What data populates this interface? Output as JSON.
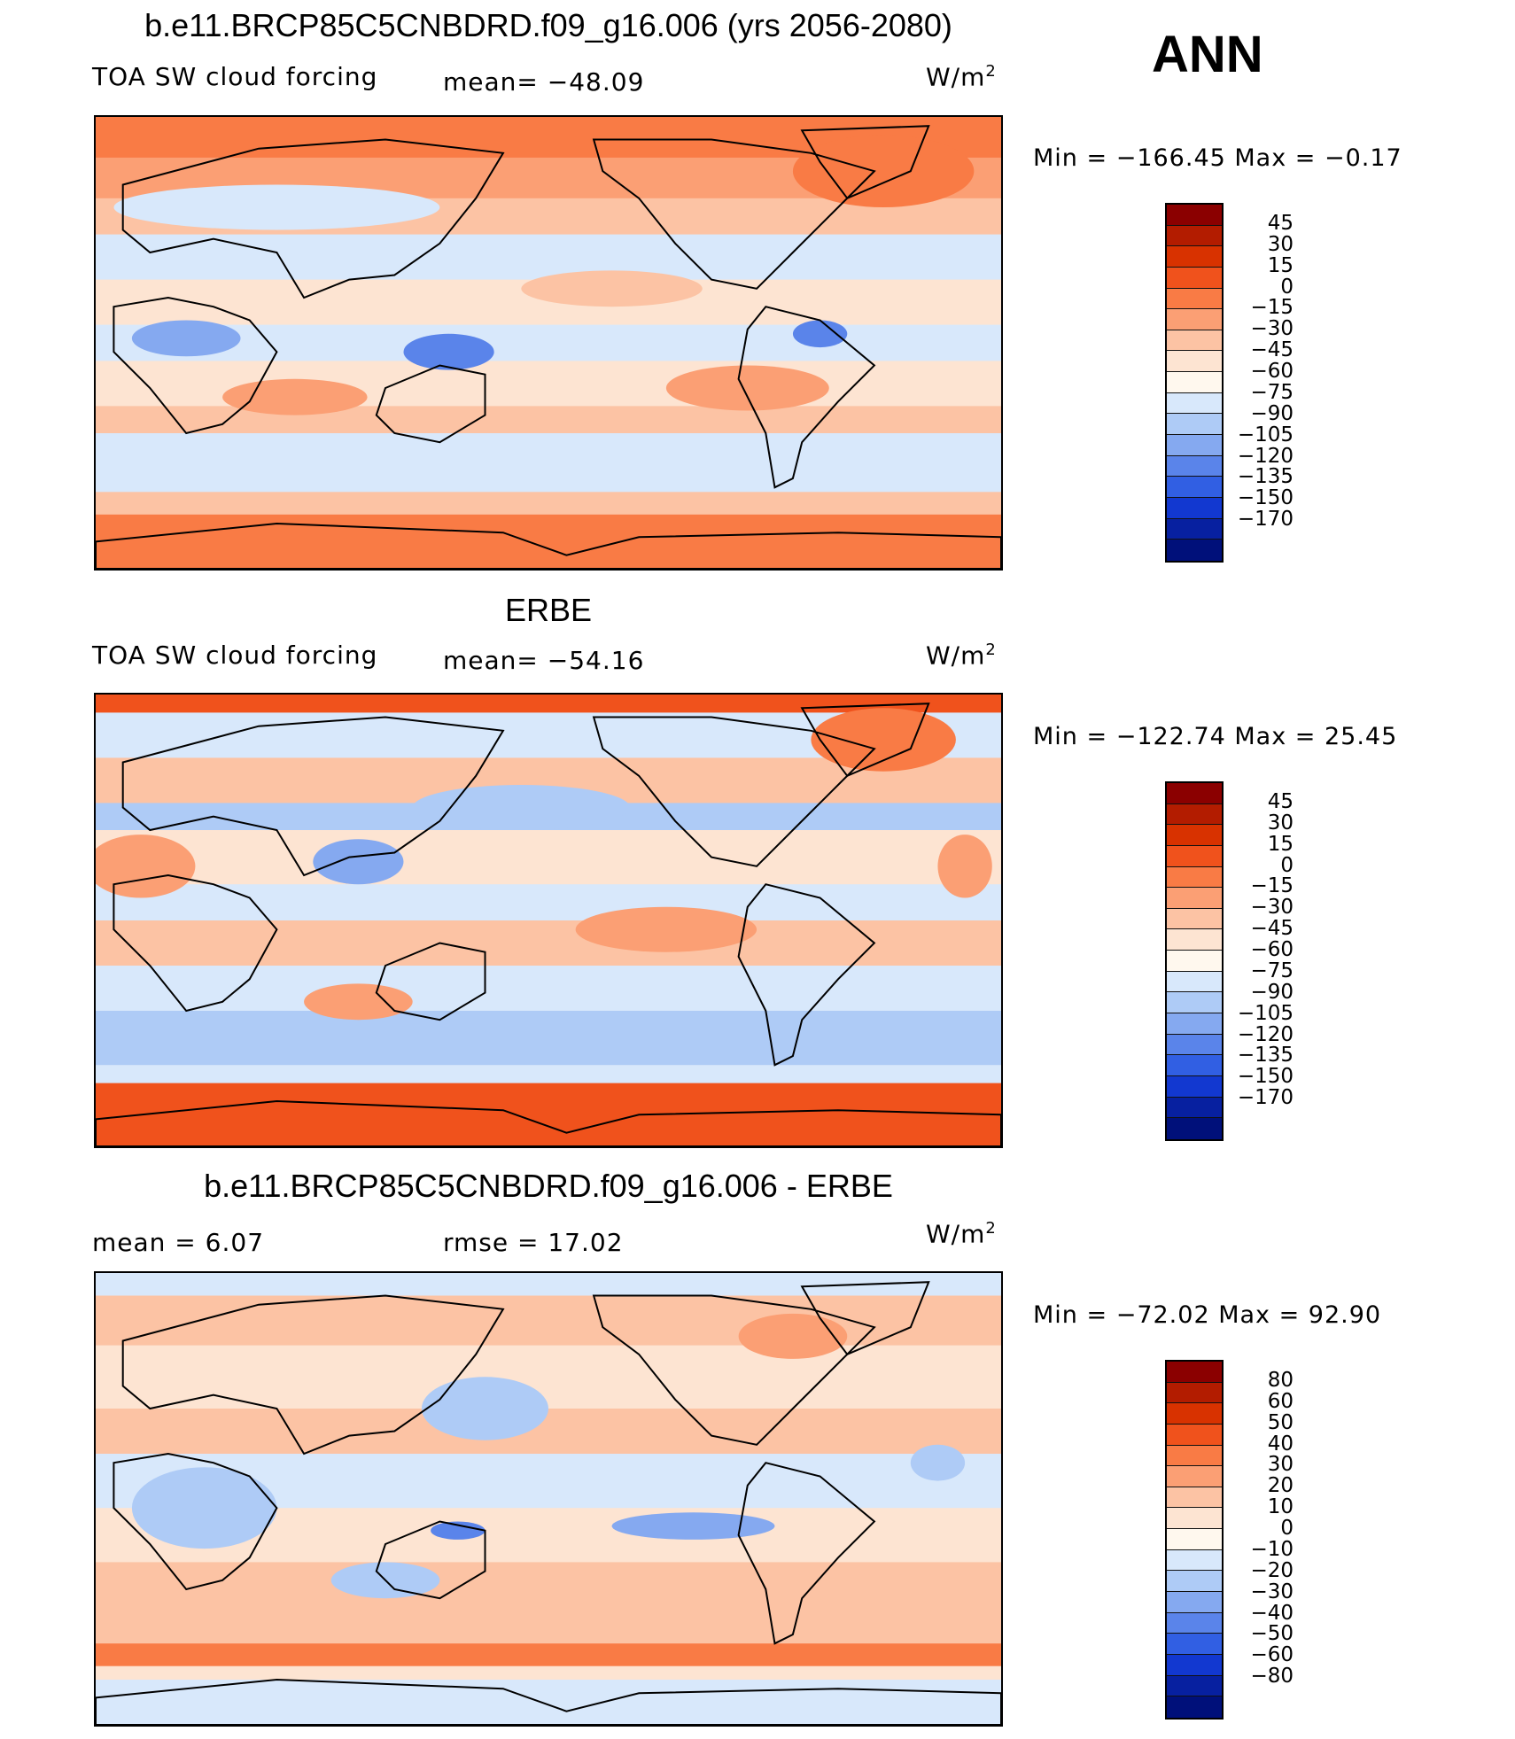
{
  "season": "ANN",
  "unit": "W/m",
  "unit_exp": "2",
  "panels": [
    {
      "title": "b.e11.BRCP85C5CNBDRD.f09_g16.006 (yrs 2056-2080)",
      "variable": "TOA SW cloud forcing",
      "mean_text": "mean=  −48.09",
      "minmax_text": "Min  =  −166.45  Max  =    −0.17",
      "palette": "field",
      "variant": 1
    },
    {
      "title": "ERBE",
      "variable": "TOA SW cloud forcing",
      "mean_text": "mean=  −54.16",
      "minmax_text": "Min  =  −122.74  Max  =    25.45",
      "palette": "field",
      "variant": 2
    },
    {
      "title": "b.e11.BRCP85C5CNBDRD.f09_g16.006 - ERBE",
      "mean_text": "mean  =     6.07",
      "rmse_text": "rmse  =    17.02",
      "minmax_text": "Min  =  −72.02  Max  =    92.90",
      "palette": "diff",
      "variant": 3
    }
  ],
  "colorbars": {
    "field": {
      "labels": [
        "45",
        "30",
        "15",
        "0",
        "−15",
        "−30",
        "−45",
        "−60",
        "−75",
        "−90",
        "−105",
        "−120",
        "−135",
        "−150",
        "−170"
      ],
      "colors": [
        "#8b0000",
        "#b31c00",
        "#d83200",
        "#f0521c",
        "#f97b45",
        "#fb9f74",
        "#fcc3a4",
        "#fde4d2",
        "#fff8ee",
        "#d8e8fb",
        "#aecbf6",
        "#85a9f0",
        "#5a84ea",
        "#315fe3",
        "#1238d0",
        "#0720a0",
        "#00107a"
      ]
    },
    "diff": {
      "labels": [
        "80",
        "60",
        "50",
        "40",
        "30",
        "20",
        "10",
        "0",
        "−10",
        "−20",
        "−30",
        "−40",
        "−50",
        "−60",
        "−80"
      ],
      "colors": [
        "#8b0000",
        "#b31c00",
        "#d83200",
        "#f0521c",
        "#f97b45",
        "#fb9f74",
        "#fcc3a4",
        "#fde4d2",
        "#fff8ee",
        "#d8e8fb",
        "#aecbf6",
        "#85a9f0",
        "#5a84ea",
        "#315fe3",
        "#1238d0",
        "#0720a0",
        "#00107a"
      ]
    }
  },
  "colors": {
    "land_outline": "#000000"
  }
}
